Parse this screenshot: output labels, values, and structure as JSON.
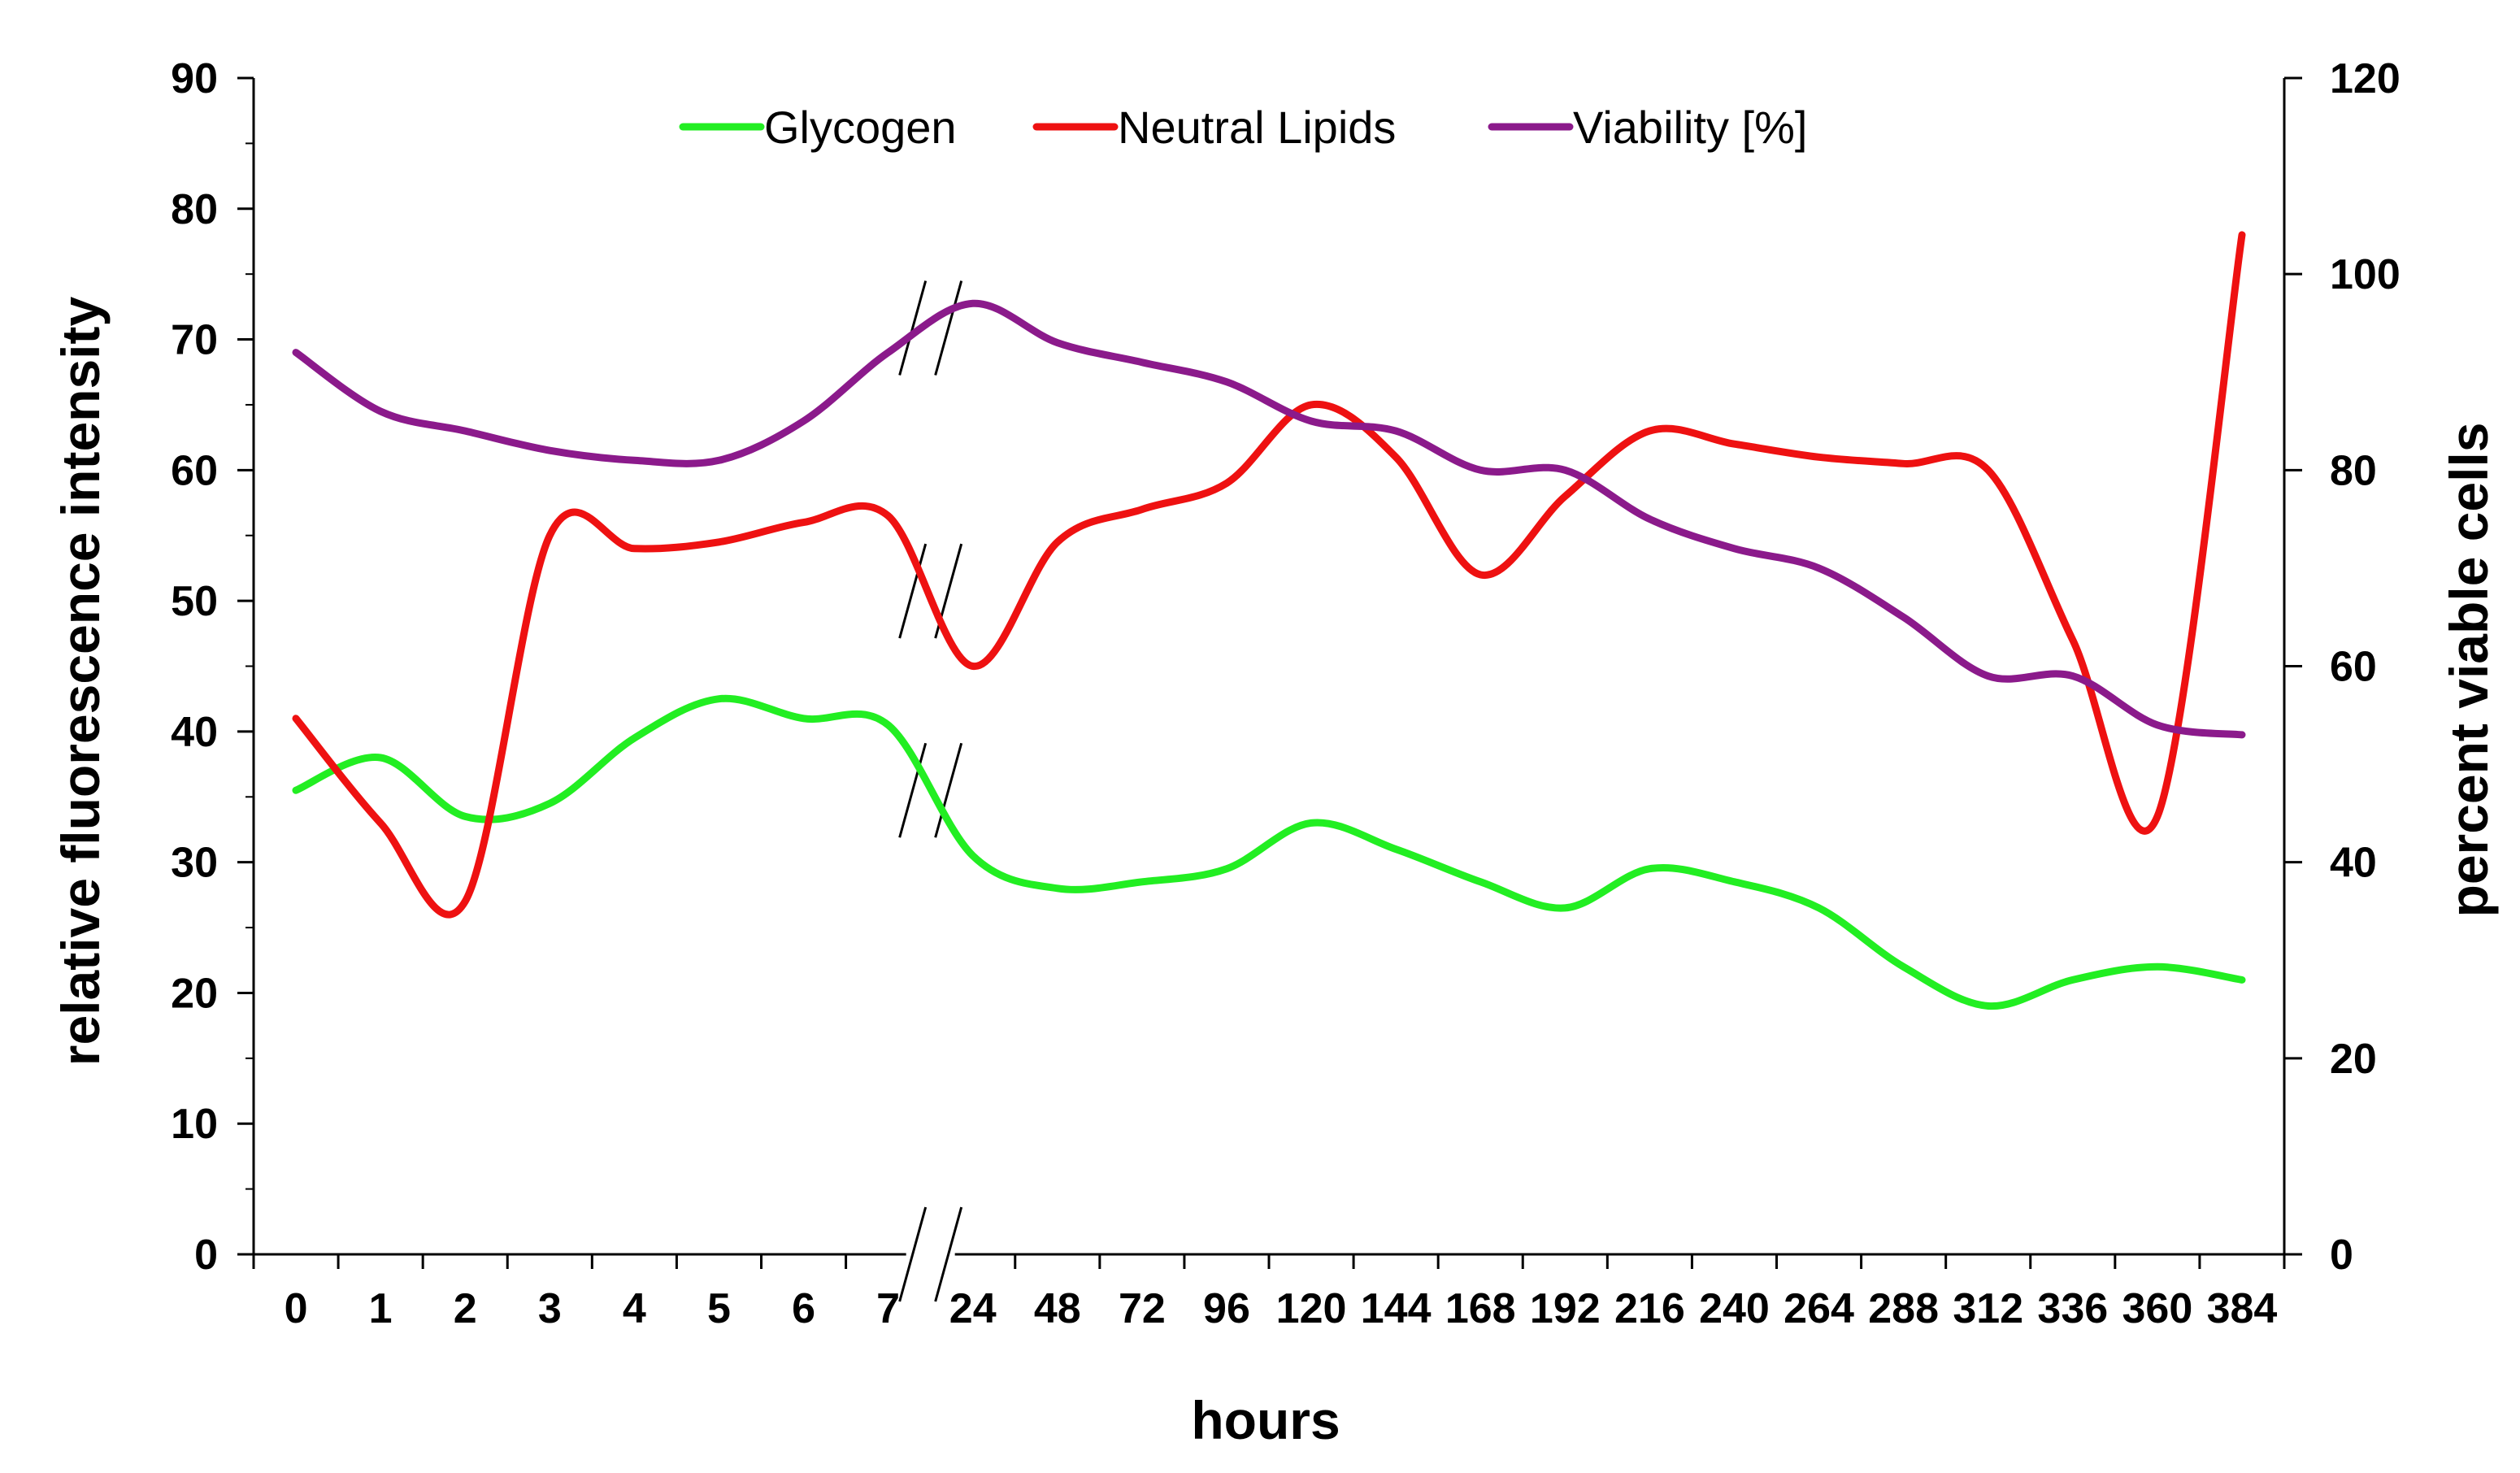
{
  "chart_data": {
    "type": "line",
    "xlabel": "hours",
    "ylabel_left": "relative fluorescence intensity",
    "ylabel_right": "percent viable cells",
    "ylim_left": [
      0,
      90
    ],
    "ylim_right": [
      0,
      120
    ],
    "yticks_left": [
      "0",
      "10",
      "20",
      "30",
      "40",
      "50",
      "60",
      "70",
      "80",
      "90"
    ],
    "yticks_right": [
      "0",
      "20",
      "40",
      "60",
      "80",
      "100",
      "120"
    ],
    "x_tick_labels": [
      "0",
      "1",
      "2",
      "3",
      "4",
      "5",
      "6",
      "7",
      "24",
      "48",
      "72",
      "96",
      "120",
      "144",
      "168",
      "192",
      "216",
      "240",
      "264",
      "288",
      "312",
      "336",
      "360",
      "384"
    ],
    "axis_break": "between 7 and 24 hours",
    "legend_position": "top-center",
    "x_hours": [
      0,
      1,
      2,
      3,
      4,
      5,
      6,
      7,
      24,
      48,
      72,
      96,
      120,
      144,
      168,
      192,
      216,
      240,
      264,
      288,
      312,
      336,
      360,
      384
    ],
    "series": [
      {
        "name": "Glycogen",
        "axis": "left",
        "color": "#22ee22",
        "values": [
          35.5,
          38,
          33.5,
          34.5,
          39.5,
          42.5,
          41,
          40.5,
          30.5,
          28,
          28.5,
          29.5,
          33,
          31,
          28.5,
          26.5,
          29.5,
          28.5,
          26.5,
          22,
          19,
          21,
          22,
          21
        ]
      },
      {
        "name": "Neutral Lipids",
        "axis": "left",
        "color": "#ee1111",
        "values": [
          41,
          33,
          27,
          55,
          54,
          54.5,
          56,
          56.5,
          45,
          54.5,
          57,
          59,
          65,
          61,
          52,
          58,
          63,
          62,
          61,
          60.5,
          60,
          47,
          33.5,
          78
        ]
      },
      {
        "name": "Viability [%]",
        "axis": "right",
        "color": "#8b1a8b",
        "values": [
          92,
          86,
          84,
          82,
          81,
          81,
          85,
          92,
          97,
          93,
          91,
          89,
          85,
          84,
          80,
          80,
          75,
          72,
          70,
          65,
          59,
          59,
          54,
          53
        ]
      }
    ]
  }
}
